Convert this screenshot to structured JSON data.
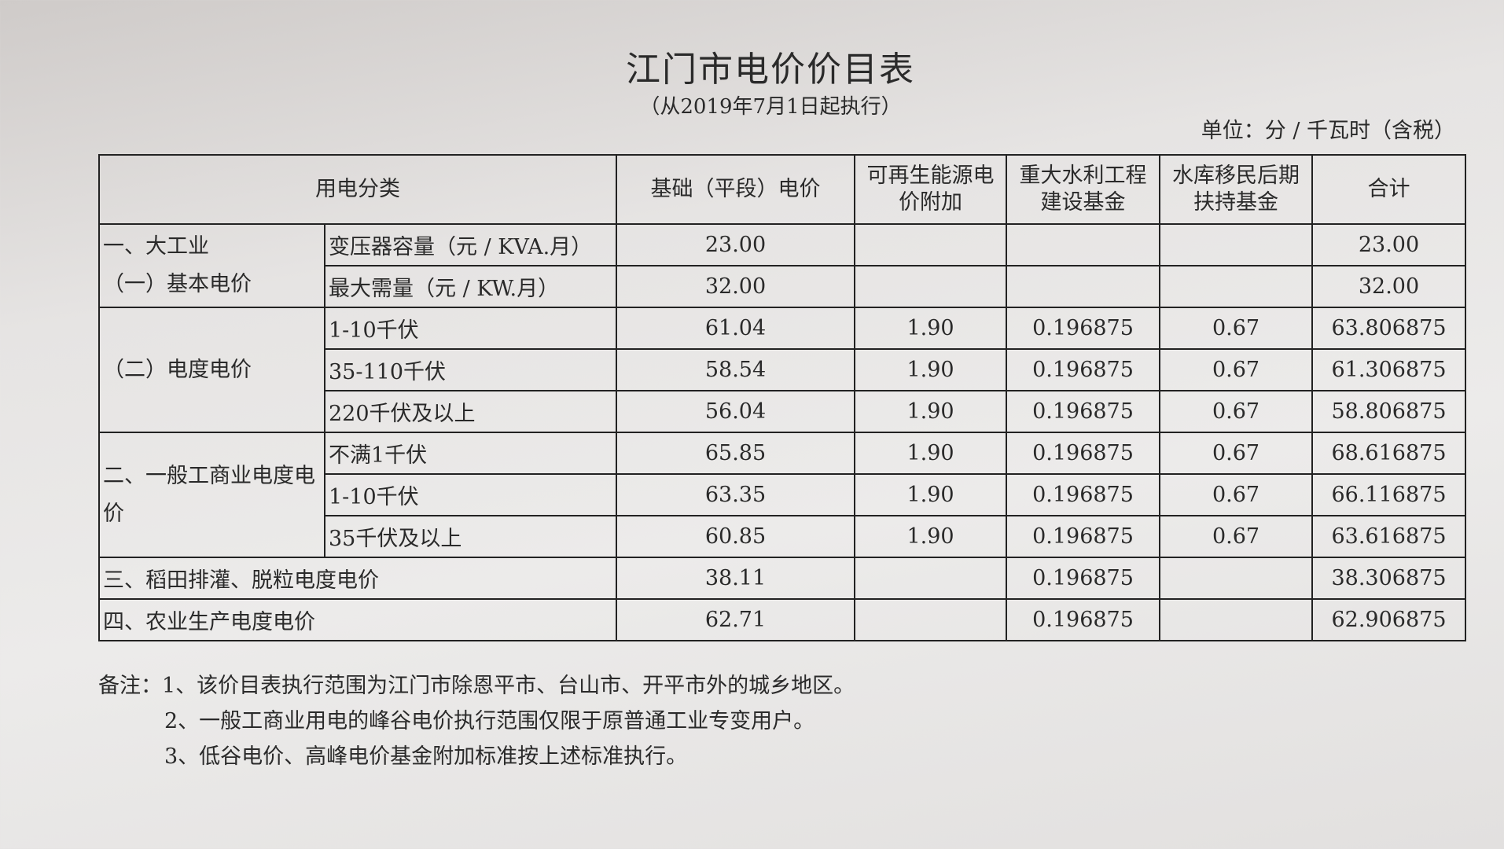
{
  "title": "江门市电价价目表",
  "subtitle": "（从2019年7月1日起执行）",
  "unit": "单位：分 / 千瓦时（含税）",
  "headers": [
    "用电分类",
    "基础（平段）电价",
    "可再生能源电价附加",
    "重大水利工程建设基金",
    "水库移民后期扶持基金",
    "合计"
  ],
  "groups": {
    "g1": "一、大工业\n（一）基本电价",
    "g1a": "一、大工业",
    "g1b": "（一）基本电价",
    "g2": "（二）电度电价",
    "g3": "二、一般工商业电度电价"
  },
  "rows": [
    {
      "sub": "变压器容量（元 / KVA.月）",
      "base": "23.00",
      "renew": "",
      "water": "",
      "resettle": "",
      "total": "23.00"
    },
    {
      "sub": "最大需量（元 / KW.月）",
      "base": "32.00",
      "renew": "",
      "water": "",
      "resettle": "",
      "total": "32.00"
    },
    {
      "sub": "1-10千伏",
      "base": "61.04",
      "renew": "1.90",
      "water": "0.196875",
      "resettle": "0.67",
      "total": "63.806875"
    },
    {
      "sub": "35-110千伏",
      "base": "58.54",
      "renew": "1.90",
      "water": "0.196875",
      "resettle": "0.67",
      "total": "61.306875"
    },
    {
      "sub": "220千伏及以上",
      "base": "56.04",
      "renew": "1.90",
      "water": "0.196875",
      "resettle": "0.67",
      "total": "58.806875"
    },
    {
      "sub": "不满1千伏",
      "base": "65.85",
      "renew": "1.90",
      "water": "0.196875",
      "resettle": "0.67",
      "total": "68.616875"
    },
    {
      "sub": "1-10千伏",
      "base": "63.35",
      "renew": "1.90",
      "water": "0.196875",
      "resettle": "0.67",
      "total": "66.116875"
    },
    {
      "sub": "35千伏及以上",
      "base": "60.85",
      "renew": "1.90",
      "water": "0.196875",
      "resettle": "0.67",
      "total": "63.616875"
    },
    {
      "sub": "三、稻田排灌、脱粒电度电价",
      "base": "38.11",
      "renew": "",
      "water": "0.196875",
      "resettle": "",
      "total": "38.306875"
    },
    {
      "sub": "四、农业生产电度电价",
      "base": "62.71",
      "renew": "",
      "water": "0.196875",
      "resettle": "",
      "total": "62.906875"
    }
  ],
  "notes": [
    "备注：1、该价目表执行范围为江门市除恩平市、台山市、开平市外的城乡地区。",
    "2、一般工商业用电的峰谷电价执行范围仅限于原普通工业专变用户。",
    "3、低谷电价、高峰电价基金附加标准按上述标准执行。"
  ]
}
